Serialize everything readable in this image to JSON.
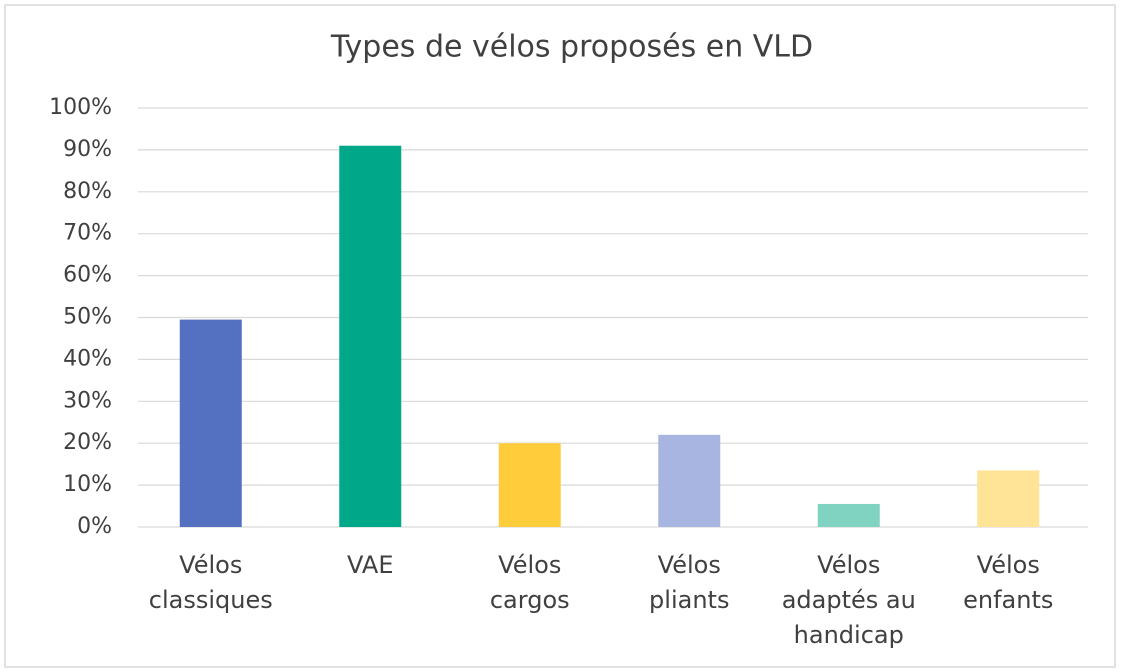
{
  "chart_data": {
    "type": "bar",
    "title": "Types de vélos proposés en VLD",
    "categories": [
      [
        "Vélos",
        "classiques"
      ],
      [
        "VAE"
      ],
      [
        "Vélos",
        "cargos"
      ],
      [
        "Vélos",
        "pliants"
      ],
      [
        "Vélos",
        "adaptés au",
        "handicap"
      ],
      [
        "Vélos",
        "enfants"
      ]
    ],
    "values": [
      49.5,
      91,
      20,
      22,
      5.5,
      13.5
    ],
    "colors": [
      "#5470c0",
      "#00a88a",
      "#ffcd3c",
      "#a8b5e0",
      "#7fd3c0",
      "#ffe497"
    ],
    "ylim": [
      0,
      100
    ],
    "yticks": [
      {
        "value": 0,
        "label": "0%"
      },
      {
        "value": 10,
        "label": "10%"
      },
      {
        "value": 20,
        "label": "20%"
      },
      {
        "value": 30,
        "label": "30%"
      },
      {
        "value": 40,
        "label": "40%"
      },
      {
        "value": 50,
        "label": "50%"
      },
      {
        "value": 60,
        "label": "60%"
      },
      {
        "value": 70,
        "label": "70%"
      },
      {
        "value": 80,
        "label": "80%"
      },
      {
        "value": 90,
        "label": "90%"
      },
      {
        "value": 100,
        "label": "100%"
      }
    ],
    "grid": true
  }
}
